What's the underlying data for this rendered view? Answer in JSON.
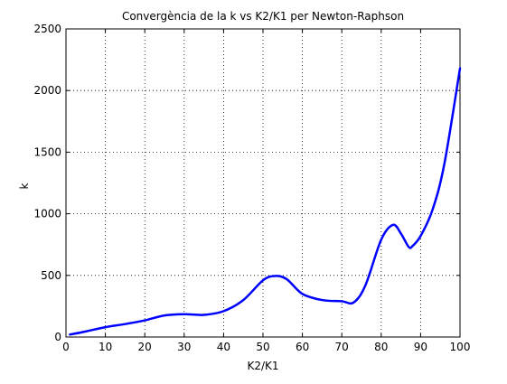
{
  "chart_data": {
    "type": "line",
    "title": "Convergència de la k vs K2/K1 per Newton-Raphson",
    "xlabel": "K2/K1",
    "ylabel": "k",
    "xlim": [
      0,
      100
    ],
    "ylim": [
      0,
      2500
    ],
    "xticks": [
      0,
      10,
      20,
      30,
      40,
      50,
      60,
      70,
      80,
      90,
      100
    ],
    "yticks": [
      0,
      500,
      1000,
      1500,
      2000,
      2500
    ],
    "xtick_labels": [
      "0",
      "10",
      "20",
      "30",
      "40",
      "50",
      "60",
      "70",
      "80",
      "90",
      "100"
    ],
    "ytick_labels": [
      "0",
      "500",
      "1000",
      "1500",
      "2000",
      "2500"
    ],
    "grid": true,
    "grid_style": "dotted",
    "series": [
      {
        "color": "#0000ff",
        "x": [
          1,
          5,
          10,
          15,
          20,
          25,
          30,
          35,
          40,
          45,
          50,
          53,
          56,
          60,
          65,
          70,
          73,
          76,
          80,
          83,
          85,
          87,
          88,
          90,
          93,
          96,
          100
        ],
        "y": [
          20,
          45,
          80,
          105,
          135,
          175,
          185,
          180,
          210,
          300,
          460,
          495,
          470,
          350,
          300,
          290,
          280,
          420,
          790,
          910,
          840,
          730,
          740,
          820,
          1030,
          1400,
          2180
        ]
      }
    ]
  }
}
